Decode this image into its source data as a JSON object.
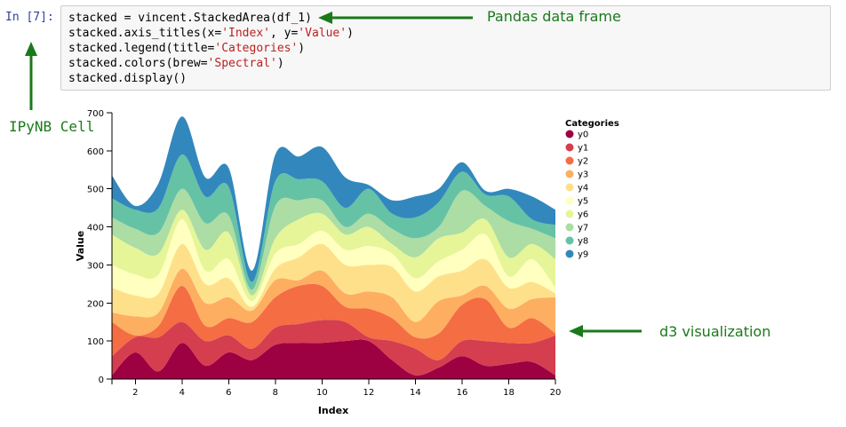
{
  "notebook": {
    "prompt": "In [7]:",
    "code": [
      [
        {
          "t": "stacked = vincent.StackedArea(df_1)"
        }
      ],
      [
        {
          "t": "stacked.axis_titles(x="
        },
        {
          "t": "'Index'",
          "s": 1
        },
        {
          "t": ", y="
        },
        {
          "t": "'Value'",
          "s": 1
        },
        {
          "t": ")"
        }
      ],
      [
        {
          "t": "stacked.legend(title="
        },
        {
          "t": "'Categories'",
          "s": 1
        },
        {
          "t": ")"
        }
      ],
      [
        {
          "t": "stacked.colors(brew="
        },
        {
          "t": "'Spectral'",
          "s": 1
        },
        {
          "t": ")"
        }
      ],
      [
        {
          "t": "stacked.display()"
        }
      ]
    ]
  },
  "annotations": {
    "pandas": "Pandas data frame",
    "ipynb": "IPyNB Cell",
    "d3": "d3 visualization",
    "color": "#1a7a1a"
  },
  "chart_data": {
    "type": "area",
    "stacked": true,
    "interpolation": "monotone",
    "xlabel": "Index",
    "ylabel": "Value",
    "xlim": [
      1,
      20
    ],
    "ylim": [
      0,
      700
    ],
    "xticks": [
      2,
      4,
      6,
      8,
      10,
      12,
      14,
      16,
      18,
      20
    ],
    "yticks": [
      0,
      100,
      200,
      300,
      400,
      500,
      600,
      700
    ],
    "legend_title": "Categories",
    "legend_position": "right",
    "x": [
      1,
      2,
      3,
      4,
      5,
      6,
      7,
      8,
      9,
      10,
      11,
      12,
      13,
      14,
      15,
      16,
      17,
      18,
      19,
      20
    ],
    "series": [
      {
        "name": "y0",
        "color": "#9e0142",
        "values": [
          10,
          70,
          20,
          95,
          35,
          70,
          50,
          90,
          95,
          95,
          100,
          100,
          50,
          10,
          30,
          60,
          35,
          40,
          45,
          10
        ]
      },
      {
        "name": "y1",
        "color": "#d53e4f",
        "values": [
          50,
          40,
          90,
          55,
          65,
          45,
          30,
          45,
          50,
          60,
          50,
          10,
          50,
          70,
          20,
          40,
          65,
          55,
          50,
          105
        ]
      },
      {
        "name": "y2",
        "color": "#f46d43",
        "values": [
          90,
          5,
          30,
          95,
          40,
          45,
          70,
          80,
          100,
          90,
          40,
          75,
          60,
          30,
          70,
          95,
          110,
          40,
          65,
          5
        ]
      },
      {
        "name": "y3",
        "color": "#fdae61",
        "values": [
          25,
          50,
          35,
          45,
          60,
          55,
          30,
          45,
          15,
          40,
          35,
          45,
          55,
          40,
          85,
          25,
          35,
          50,
          50,
          95
        ]
      },
      {
        "name": "y4",
        "color": "#fee08b",
        "values": [
          65,
          55,
          50,
          65,
          50,
          50,
          10,
          30,
          60,
          70,
          75,
          70,
          80,
          80,
          65,
          65,
          70,
          55,
          45,
          10
        ]
      },
      {
        "name": "y5",
        "color": "#ffffbf",
        "values": [
          60,
          55,
          50,
          65,
          35,
          50,
          15,
          40,
          35,
          35,
          40,
          50,
          35,
          35,
          40,
          55,
          65,
          30,
          60,
          15
        ]
      },
      {
        "name": "y6",
        "color": "#e6f598",
        "values": [
          80,
          70,
          55,
          25,
          55,
          70,
          15,
          40,
          65,
          45,
          40,
          50,
          25,
          55,
          60,
          45,
          40,
          50,
          40,
          75
        ]
      },
      {
        "name": "y7",
        "color": "#abdda4",
        "values": [
          45,
          50,
          55,
          55,
          70,
          45,
          15,
          85,
          50,
          35,
          20,
          35,
          40,
          50,
          30,
          110,
          35,
          95,
          40,
          55
        ]
      },
      {
        "name": "y8",
        "color": "#66c2a5",
        "values": [
          50,
          50,
          65,
          90,
          70,
          75,
          20,
          65,
          55,
          50,
          50,
          65,
          40,
          55,
          65,
          50,
          30,
          65,
          25,
          35
        ]
      },
      {
        "name": "y9",
        "color": "#3288bd",
        "values": [
          60,
          10,
          65,
          100,
          50,
          50,
          30,
          70,
          60,
          90,
          80,
          10,
          35,
          55,
          35,
          25,
          10,
          20,
          60,
          40
        ]
      }
    ]
  }
}
